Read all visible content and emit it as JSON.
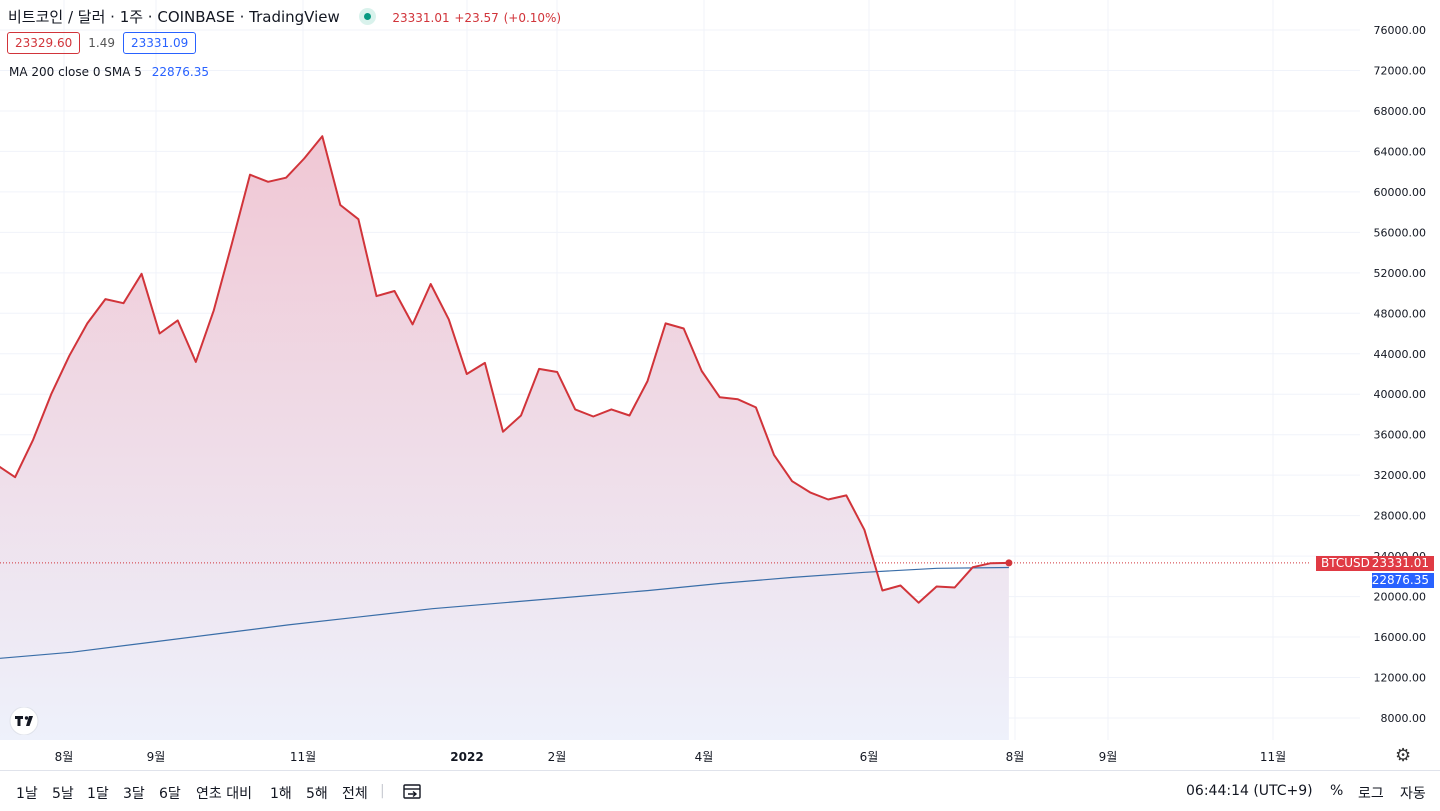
{
  "header": {
    "title": "비트코인 / 달러 · 1주 · COINBASE · TradingView",
    "last_price": "23331.01",
    "change": "+23.57",
    "change_pct": "(+0.10%)",
    "sell_price": "23329.60",
    "spread": "1.49",
    "buy_price": "23331.09",
    "ma_label": "MA 200 close 0 SMA 5",
    "ma_value": "22876.35"
  },
  "badges": {
    "symbol": "BTCUSD",
    "price": "23331.01",
    "ma": "22876.35"
  },
  "bottom_bar": {
    "ranges": [
      "1날",
      "5날",
      "1달",
      "3달",
      "6달",
      "연초 대비",
      "1해",
      "5해",
      "전체"
    ],
    "time": "06:44:14 (UTC+9)",
    "percent": "%",
    "log": "로그",
    "auto": "자동"
  },
  "colors": {
    "price_line": "#d1343a",
    "ma_line": "#3a6ea8",
    "fill_top": "#f0c7d4",
    "fill_bottom": "#eef1fb"
  },
  "chart_data": {
    "type": "area",
    "x_tick_labels": [
      "8월",
      "9월",
      "11월",
      "2022",
      "2월",
      "4월",
      "6월",
      "8월",
      "9월",
      "11월"
    ],
    "y_tick_labels": [
      "8000.00",
      "12000.00",
      "16000.00",
      "20000.00",
      "24000.00",
      "28000.00",
      "32000.00",
      "36000.00",
      "40000.00",
      "44000.00",
      "48000.00",
      "52000.00",
      "56000.00",
      "60000.00",
      "64000.00",
      "68000.00",
      "72000.00",
      "76000.00"
    ],
    "ylim": [
      4000,
      77500
    ],
    "x_range": [
      -0.3,
      77
    ],
    "series": [
      {
        "name": "BTCUSD",
        "values": [
          33000,
          31800,
          35500,
          40000,
          43800,
          47000,
          49400,
          49000,
          51900,
          46000,
          47300,
          43200,
          48300,
          54900,
          61700,
          61000,
          61400,
          63300,
          65500,
          58700,
          57300,
          49700,
          50200,
          46900,
          50900,
          47400,
          42000,
          43100,
          36300,
          37900,
          42500,
          42200,
          38500,
          37800,
          38500,
          37900,
          41300,
          47000,
          46500,
          42300,
          39700,
          39500,
          38700,
          34000,
          31400,
          30300,
          29600,
          30000,
          26600,
          20600,
          21100,
          19400,
          21000,
          20900,
          22900,
          23300,
          23331
        ]
      },
      {
        "name": "MA 200 close 0 SMA 5",
        "values": [
          13900,
          14500,
          15400,
          16300,
          17200,
          18000,
          18800,
          19400,
          20000,
          20600,
          21300,
          21900,
          22400,
          22800,
          22876
        ]
      }
    ]
  }
}
